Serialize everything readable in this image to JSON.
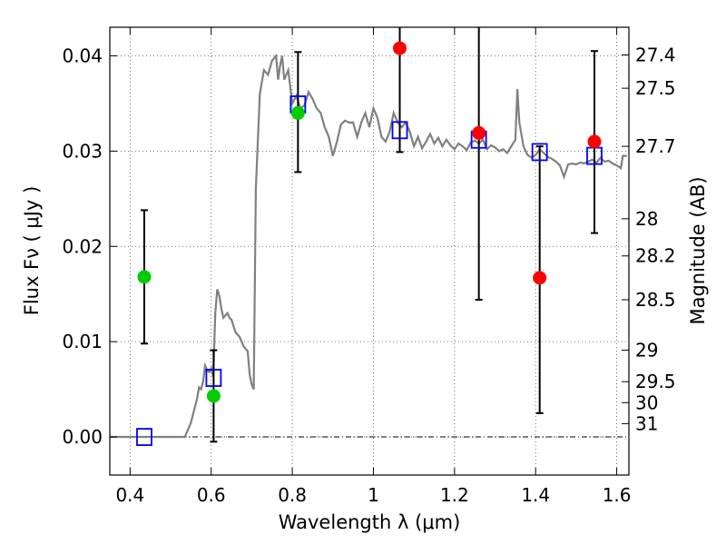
{
  "chart_data": {
    "type": "scatter",
    "xlabel": "Wavelength  λ (μm)",
    "ylabel": "Flux  Fν  ( μJy )",
    "ylabel_right": "Magnitude (AB)",
    "xlim": [
      0.35,
      1.63
    ],
    "ylim": [
      -0.004,
      0.043
    ],
    "x_ticks": [
      0.4,
      0.6,
      0.8,
      1.0,
      1.2,
      1.4,
      1.6
    ],
    "x_tick_labels": [
      "0.4",
      "0.6",
      "0.8",
      "1",
      "1.2",
      "1.4",
      "1.6"
    ],
    "y_ticks": [
      0.0,
      0.01,
      0.02,
      0.03,
      0.04
    ],
    "y_tick_labels": [
      "0.00",
      "0.01",
      "0.02",
      "0.03",
      "0.04"
    ],
    "mag_ticks": [
      {
        "flux": 0.0401,
        "label": "27.4"
      },
      {
        "flux": 0.0366,
        "label": "27.5"
      },
      {
        "flux": 0.0305,
        "label": "27.7"
      },
      {
        "flux": 0.0229,
        "label": "28"
      },
      {
        "flux": 0.019,
        "label": "28.2"
      },
      {
        "flux": 0.0144,
        "label": "28.5"
      },
      {
        "flux": 0.0091,
        "label": "29"
      },
      {
        "flux": 0.0058,
        "label": "29.5"
      },
      {
        "flux": 0.0036,
        "label": "30"
      },
      {
        "flux": 0.0014,
        "label": "31"
      }
    ],
    "grid": true,
    "zero_line": true,
    "colors": {
      "model": "#808080",
      "model_bands": "#0000ff",
      "observed_detect": "#00cc00",
      "observed_upper": "#ff0000",
      "errorbar": "#000000"
    },
    "series": [
      {
        "name": "model_spectrum",
        "kind": "line",
        "points": [
          [
            0.35,
            0.0
          ],
          [
            0.52,
            0.0
          ],
          [
            0.535,
            0.0
          ],
          [
            0.55,
            0.0015
          ],
          [
            0.565,
            0.004
          ],
          [
            0.57,
            0.0052
          ],
          [
            0.575,
            0.005
          ],
          [
            0.58,
            0.0058
          ],
          [
            0.585,
            0.0075
          ],
          [
            0.59,
            0.007
          ],
          [
            0.595,
            0.0068
          ],
          [
            0.6,
            0.0072
          ],
          [
            0.605,
            0.0063
          ],
          [
            0.61,
            0.013
          ],
          [
            0.615,
            0.0155
          ],
          [
            0.62,
            0.0148
          ],
          [
            0.625,
            0.0135
          ],
          [
            0.63,
            0.0125
          ],
          [
            0.64,
            0.013
          ],
          [
            0.645,
            0.0125
          ],
          [
            0.65,
            0.0123
          ],
          [
            0.66,
            0.011
          ],
          [
            0.67,
            0.0105
          ],
          [
            0.68,
            0.0095
          ],
          [
            0.69,
            0.009
          ],
          [
            0.695,
            0.0065
          ],
          [
            0.7,
            0.0055
          ],
          [
            0.705,
            0.005
          ],
          [
            0.71,
            0.026
          ],
          [
            0.72,
            0.036
          ],
          [
            0.73,
            0.0385
          ],
          [
            0.74,
            0.038
          ],
          [
            0.75,
            0.0395
          ],
          [
            0.76,
            0.04
          ],
          [
            0.765,
            0.0375
          ],
          [
            0.77,
            0.039
          ],
          [
            0.775,
            0.04
          ],
          [
            0.78,
            0.0375
          ],
          [
            0.79,
            0.0385
          ],
          [
            0.8,
            0.035
          ],
          [
            0.81,
            0.0358
          ],
          [
            0.82,
            0.0345
          ],
          [
            0.83,
            0.0348
          ],
          [
            0.84,
            0.0362
          ],
          [
            0.85,
            0.0355
          ],
          [
            0.86,
            0.0345
          ],
          [
            0.87,
            0.034
          ],
          [
            0.88,
            0.0325
          ],
          [
            0.89,
            0.0315
          ],
          [
            0.9,
            0.0295
          ],
          [
            0.91,
            0.031
          ],
          [
            0.92,
            0.0328
          ],
          [
            0.93,
            0.0332
          ],
          [
            0.94,
            0.033
          ],
          [
            0.95,
            0.033
          ],
          [
            0.96,
            0.0315
          ],
          [
            0.97,
            0.033
          ],
          [
            0.98,
            0.034
          ],
          [
            0.99,
            0.0325
          ],
          [
            1.0,
            0.0345
          ],
          [
            1.01,
            0.0335
          ],
          [
            1.02,
            0.0315
          ],
          [
            1.03,
            0.031
          ],
          [
            1.04,
            0.032
          ],
          [
            1.05,
            0.034
          ],
          [
            1.06,
            0.033
          ],
          [
            1.07,
            0.0325
          ],
          [
            1.08,
            0.033
          ],
          [
            1.09,
            0.032
          ],
          [
            1.1,
            0.0305
          ],
          [
            1.11,
            0.0315
          ],
          [
            1.12,
            0.0303
          ],
          [
            1.13,
            0.031
          ],
          [
            1.14,
            0.0318
          ],
          [
            1.15,
            0.0308
          ],
          [
            1.16,
            0.0314
          ],
          [
            1.17,
            0.0305
          ],
          [
            1.18,
            0.0312
          ],
          [
            1.19,
            0.0306
          ],
          [
            1.2,
            0.0302
          ],
          [
            1.21,
            0.0308
          ],
          [
            1.22,
            0.0305
          ],
          [
            1.23,
            0.0301
          ],
          [
            1.24,
            0.0309
          ],
          [
            1.25,
            0.0311
          ],
          [
            1.26,
            0.0308
          ],
          [
            1.27,
            0.0312
          ],
          [
            1.28,
            0.0302
          ],
          [
            1.29,
            0.0306
          ],
          [
            1.3,
            0.0304
          ],
          [
            1.31,
            0.03
          ],
          [
            1.32,
            0.0302
          ],
          [
            1.33,
            0.0298
          ],
          [
            1.34,
            0.0305
          ],
          [
            1.35,
            0.0312
          ],
          [
            1.355,
            0.0365
          ],
          [
            1.36,
            0.033
          ],
          [
            1.37,
            0.0305
          ],
          [
            1.38,
            0.0296
          ],
          [
            1.39,
            0.0293
          ],
          [
            1.4,
            0.0296
          ],
          [
            1.41,
            0.0302
          ],
          [
            1.42,
            0.0298
          ],
          [
            1.43,
            0.0294
          ],
          [
            1.44,
            0.0292
          ],
          [
            1.45,
            0.0289
          ],
          [
            1.46,
            0.0285
          ],
          [
            1.47,
            0.0273
          ],
          [
            1.48,
            0.0286
          ],
          [
            1.49,
            0.0287
          ],
          [
            1.5,
            0.0286
          ],
          [
            1.51,
            0.0288
          ],
          [
            1.52,
            0.0287
          ],
          [
            1.53,
            0.0289
          ],
          [
            1.54,
            0.0291
          ],
          [
            1.55,
            0.0288
          ],
          [
            1.56,
            0.0293
          ],
          [
            1.57,
            0.0289
          ],
          [
            1.58,
            0.029
          ],
          [
            1.59,
            0.0287
          ],
          [
            1.6,
            0.0285
          ],
          [
            1.61,
            0.0282
          ],
          [
            1.615,
            0.0295
          ],
          [
            1.625,
            0.0295
          ]
        ]
      },
      {
        "name": "model_band_fluxes",
        "kind": "square",
        "x": [
          0.435,
          0.606,
          0.814,
          1.065,
          1.26,
          1.41,
          1.545
        ],
        "y": [
          0.0,
          0.0062,
          0.0349,
          0.0322,
          0.0312,
          0.0299,
          0.0295
        ]
      },
      {
        "name": "observed_green",
        "kind": "circle",
        "x": [
          0.435,
          0.606,
          0.814
        ],
        "y": [
          0.0168,
          0.0043,
          0.034
        ],
        "err_low": [
          0.0098,
          -0.0005,
          0.0278
        ],
        "err_high": [
          0.0238,
          0.0091,
          0.0404
        ]
      },
      {
        "name": "observed_red",
        "kind": "circle",
        "x": [
          1.065,
          1.26,
          1.41,
          1.545
        ],
        "y": [
          0.0408,
          0.0319,
          0.0167,
          0.031
        ],
        "err_low": [
          0.0299,
          0.0144,
          0.0025,
          0.0214
        ],
        "err_high": [
          0.0435,
          0.0435,
          0.0305,
          0.0405
        ]
      }
    ]
  }
}
